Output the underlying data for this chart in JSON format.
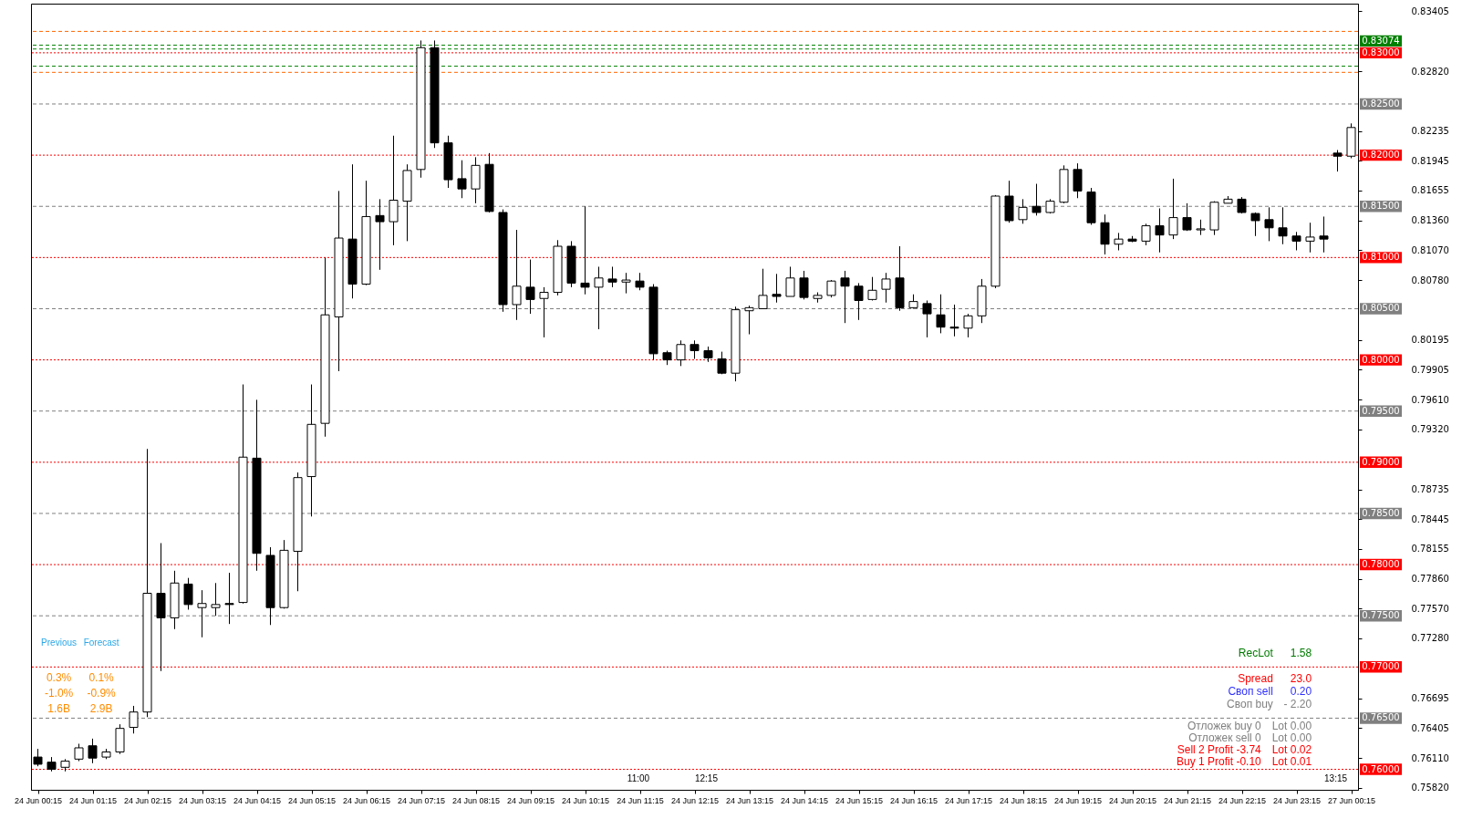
{
  "chart_data": {
    "type": "candlestick",
    "color": "#000000",
    "categories": [
      "24 Jun 00:15",
      null,
      null,
      null,
      "24 Jun 01:15",
      null,
      null,
      null,
      "24 Jun 02:15",
      null,
      null,
      null,
      "24 Jun 03:15",
      null,
      null,
      null,
      "24 Jun 04:15",
      null,
      null,
      null,
      "24 Jun 05:15",
      null,
      null,
      null,
      "24 Jun 06:15",
      null,
      null,
      null,
      "24 Jun 07:15",
      null,
      null,
      null,
      "24 Jun 08:15",
      null,
      null,
      null,
      "24 Jun 09:15",
      null,
      null,
      null,
      "24 Jun 10:15",
      null,
      null,
      null,
      "24 Jun 11:15",
      null,
      null,
      null,
      "24 Jun 12:15",
      null,
      null,
      null,
      "24 Jun 13:15",
      null,
      null,
      null,
      "24 Jun 14:15",
      null,
      null,
      null,
      "24 Jun 15:15",
      null,
      null,
      null,
      "24 Jun 16:15",
      null,
      null,
      null,
      "24 Jun 17:15",
      null,
      null,
      null,
      "24 Jun 18:15",
      null,
      null,
      null,
      "24 Jun 19:15",
      null,
      null,
      null,
      "24 Jun 20:15",
      null,
      null,
      null,
      "24 Jun 21:15",
      null,
      null,
      null,
      "24 Jun 22:15",
      null,
      null,
      null,
      "24 Jun 23:15",
      null,
      null,
      null,
      "27 Jun 00:15"
    ],
    "ohlc": [
      [
        0.7612,
        0.762,
        0.7603,
        0.7605
      ],
      [
        0.7607,
        0.7612,
        0.7598,
        0.76
      ],
      [
        0.7602,
        0.761,
        0.7598,
        0.7608
      ],
      [
        0.761,
        0.7625,
        0.7608,
        0.7621
      ],
      [
        0.7623,
        0.763,
        0.7606,
        0.7611
      ],
      [
        0.7612,
        0.762,
        0.761,
        0.7617
      ],
      [
        0.7617,
        0.7644,
        0.7615,
        0.764
      ],
      [
        0.7641,
        0.7662,
        0.7635,
        0.7656
      ],
      [
        0.7656,
        0.7913,
        0.7651,
        0.7772
      ],
      [
        0.7772,
        0.7821,
        0.7696,
        0.7748
      ],
      [
        0.7748,
        0.7794,
        0.7737,
        0.7782
      ],
      [
        0.7781,
        0.7787,
        0.7756,
        0.7761
      ],
      [
        0.7758,
        0.7775,
        0.7729,
        0.7762
      ],
      [
        0.7758,
        0.7782,
        0.775,
        0.7761
      ],
      [
        0.7762,
        0.7792,
        0.7742,
        0.7761
      ],
      [
        0.7763,
        0.7976,
        0.7762,
        0.7905
      ],
      [
        0.7904,
        0.7961,
        0.7794,
        0.7811
      ],
      [
        0.7809,
        0.7817,
        0.7741,
        0.7758
      ],
      [
        0.7758,
        0.7824,
        0.7757,
        0.7814
      ],
      [
        0.7813,
        0.789,
        0.7774,
        0.7885
      ],
      [
        0.7886,
        0.7976,
        0.7847,
        0.7937
      ],
      [
        0.7938,
        0.81,
        0.7925,
        0.8044
      ],
      [
        0.8042,
        0.8165,
        0.7989,
        0.8119
      ],
      [
        0.8118,
        0.8191,
        0.806,
        0.8074
      ],
      [
        0.8074,
        0.8175,
        0.8073,
        0.814
      ],
      [
        0.8141,
        0.8157,
        0.8088,
        0.8135
      ],
      [
        0.8135,
        0.8219,
        0.8112,
        0.8156
      ],
      [
        0.8155,
        0.8191,
        0.8116,
        0.8185
      ],
      [
        0.8186,
        0.8312,
        0.8178,
        0.8305
      ],
      [
        0.8305,
        0.8312,
        0.8207,
        0.8212
      ],
      [
        0.8212,
        0.8219,
        0.8168,
        0.8176
      ],
      [
        0.8177,
        0.8195,
        0.8158,
        0.8167
      ],
      [
        0.8167,
        0.8198,
        0.8153,
        0.819
      ],
      [
        0.8191,
        0.8202,
        0.8144,
        0.8145
      ],
      [
        0.8144,
        0.8147,
        0.8047,
        0.8054
      ],
      [
        0.8054,
        0.8127,
        0.8039,
        0.8072
      ],
      [
        0.8071,
        0.8098,
        0.8045,
        0.8059
      ],
      [
        0.806,
        0.8071,
        0.8022,
        0.8066
      ],
      [
        0.8066,
        0.8117,
        0.8063,
        0.8111
      ],
      [
        0.8111,
        0.8116,
        0.8071,
        0.8075
      ],
      [
        0.8075,
        0.815,
        0.8064,
        0.8071
      ],
      [
        0.8071,
        0.8091,
        0.803,
        0.808
      ],
      [
        0.8079,
        0.8091,
        0.8071,
        0.8076
      ],
      [
        0.8076,
        0.8085,
        0.8065,
        0.8078
      ],
      [
        0.8077,
        0.8085,
        0.8068,
        0.8071
      ],
      [
        0.8071,
        0.8074,
        0.8,
        0.8006
      ],
      [
        0.8007,
        0.8009,
        0.7995,
        0.8
      ],
      [
        0.8,
        0.8019,
        0.7994,
        0.8015
      ],
      [
        0.8015,
        0.8019,
        0.8001,
        0.8009
      ],
      [
        0.8009,
        0.8013,
        0.7998,
        0.8002
      ],
      [
        0.8001,
        0.8008,
        0.7986,
        0.7987
      ],
      [
        0.7987,
        0.8052,
        0.7979,
        0.8049
      ],
      [
        0.8048,
        0.8053,
        0.8025,
        0.8051
      ],
      [
        0.805,
        0.8089,
        0.805,
        0.8063
      ],
      [
        0.8064,
        0.8084,
        0.8056,
        0.8062
      ],
      [
        0.8062,
        0.8091,
        0.8062,
        0.808
      ],
      [
        0.808,
        0.8087,
        0.8059,
        0.8061
      ],
      [
        0.806,
        0.8066,
        0.8056,
        0.8063
      ],
      [
        0.8063,
        0.8078,
        0.8061,
        0.8077
      ],
      [
        0.808,
        0.8087,
        0.8036,
        0.8072
      ],
      [
        0.8072,
        0.8075,
        0.8039,
        0.8058
      ],
      [
        0.8059,
        0.8081,
        0.8058,
        0.8068
      ],
      [
        0.8069,
        0.8085,
        0.8056,
        0.8079
      ],
      [
        0.808,
        0.8111,
        0.8048,
        0.8051
      ],
      [
        0.8051,
        0.8064,
        0.805,
        0.8057
      ],
      [
        0.8055,
        0.8058,
        0.8022,
        0.8045
      ],
      [
        0.8044,
        0.8064,
        0.8026,
        0.8032
      ],
      [
        0.8032,
        0.8054,
        0.8023,
        0.8031
      ],
      [
        0.8031,
        0.8045,
        0.8022,
        0.8043
      ],
      [
        0.8043,
        0.8079,
        0.8036,
        0.8072
      ],
      [
        0.8072,
        0.8161,
        0.807,
        0.816
      ],
      [
        0.816,
        0.8175,
        0.8134,
        0.8136
      ],
      [
        0.8137,
        0.8157,
        0.8133,
        0.8149
      ],
      [
        0.815,
        0.8172,
        0.8141,
        0.8144
      ],
      [
        0.8144,
        0.8157,
        0.8143,
        0.8155
      ],
      [
        0.8154,
        0.819,
        0.8153,
        0.8186
      ],
      [
        0.8186,
        0.8192,
        0.8158,
        0.8165
      ],
      [
        0.8164,
        0.8168,
        0.8132,
        0.8134
      ],
      [
        0.8134,
        0.8142,
        0.8103,
        0.8113
      ],
      [
        0.8113,
        0.8124,
        0.8107,
        0.8118
      ],
      [
        0.8118,
        0.8121,
        0.8115,
        0.8116
      ],
      [
        0.8116,
        0.8133,
        0.8112,
        0.8131
      ],
      [
        0.8131,
        0.8148,
        0.8105,
        0.8122
      ],
      [
        0.8122,
        0.8177,
        0.8118,
        0.8139
      ],
      [
        0.8139,
        0.8153,
        0.8126,
        0.8127
      ],
      [
        0.8127,
        0.8137,
        0.8122,
        0.8128
      ],
      [
        0.8127,
        0.8155,
        0.8122,
        0.8154
      ],
      [
        0.8153,
        0.816,
        0.8153,
        0.8157
      ],
      [
        0.8157,
        0.8159,
        0.8143,
        0.8144
      ],
      [
        0.8143,
        0.8144,
        0.8121,
        0.8136
      ],
      [
        0.8137,
        0.8149,
        0.8116,
        0.8129
      ],
      [
        0.8129,
        0.8149,
        0.8113,
        0.8121
      ],
      [
        0.8121,
        0.8125,
        0.8107,
        0.8116
      ],
      [
        0.8116,
        0.8134,
        0.8105,
        0.812
      ],
      [
        0.8121,
        0.814,
        0.8105,
        0.8118
      ],
      [
        0.8202,
        0.8205,
        0.8184,
        0.8199
      ],
      [
        0.8199,
        0.8231,
        0.8197,
        0.8227
      ]
    ],
    "ylim": [
      0.758,
      0.8348
    ],
    "yticks": [
      0.83405,
      {
        "value": 0.8282,
        "label": "0.82820"
      },
      0.82235,
      0.81945,
      0.81655,
      {
        "value": 0.8136,
        "label": "0.81360"
      },
      {
        "value": 0.8107,
        "label": "0.81070"
      },
      {
        "value": 0.8078,
        "label": "0.80780"
      },
      0.80195,
      0.79905,
      {
        "value": 0.7961,
        "label": "0.79610"
      },
      {
        "value": 0.7932,
        "label": "0.79320"
      },
      0.78735,
      0.78445,
      0.78155,
      {
        "value": 0.7786,
        "label": "0.77860"
      },
      {
        "value": 0.7757,
        "label": "0.77570"
      },
      {
        "value": 0.7728,
        "label": "0.77280"
      },
      0.76695,
      0.76405,
      {
        "value": 0.7611,
        "label": "0.76110"
      },
      {
        "value": 0.7582,
        "label": "0.75820"
      }
    ],
    "ref_lines": [
      {
        "axis": "y",
        "value": 0.83209,
        "color": "#ff6600",
        "line_style": "dashed"
      },
      {
        "axis": "y",
        "value": 0.83074,
        "label": "0.83074",
        "color": "#008000",
        "line_style": "dashed"
      },
      {
        "axis": "y",
        "value": 0.83037,
        "color": "#008000",
        "line_style": "dashed"
      },
      {
        "axis": "y",
        "value": 0.83,
        "label": "0.83000",
        "color": "#ff0000",
        "line_style": "dotted"
      },
      {
        "axis": "y",
        "value": 0.82869,
        "color": "#008000",
        "line_style": "dashed"
      },
      {
        "axis": "y",
        "value": 0.82809,
        "color": "#ff6600",
        "line_style": "dashed"
      },
      {
        "axis": "y",
        "value": 0.825,
        "label": "0.82500",
        "color": "#808080",
        "line_style": "dashed"
      },
      {
        "axis": "y",
        "value": 0.82,
        "label": "0.82000",
        "color": "#ff0000",
        "line_style": "dotted"
      },
      {
        "axis": "y",
        "value": 0.815,
        "label": "0.81500",
        "color": "#808080",
        "line_style": "dashed"
      },
      {
        "axis": "y",
        "value": 0.81,
        "label": "0.81000",
        "color": "#ff0000",
        "line_style": "dotted"
      },
      {
        "axis": "y",
        "value": 0.805,
        "label": "0.80500",
        "color": "#808080",
        "line_style": "dashed"
      },
      {
        "axis": "y",
        "value": 0.8,
        "label": "0.80000",
        "color": "#ff0000",
        "line_style": "dotted"
      },
      {
        "axis": "y",
        "value": 0.795,
        "label": "0.79500",
        "color": "#808080",
        "line_style": "dashed"
      },
      {
        "axis": "y",
        "value": 0.79,
        "label": "0.79000",
        "color": "#ff0000",
        "line_style": "dotted"
      },
      {
        "axis": "y",
        "value": 0.785,
        "label": "0.78500",
        "color": "#808080",
        "line_style": "dashed"
      },
      {
        "axis": "y",
        "value": 0.78,
        "label": "0.78000",
        "color": "#ff0000",
        "line_style": "dotted"
      },
      {
        "axis": "y",
        "value": 0.775,
        "label": "0.77500",
        "color": "#808080",
        "line_style": "dashed"
      },
      {
        "axis": "y",
        "value": 0.77,
        "label": "0.77000",
        "color": "#ff0000",
        "line_style": "dotted"
      },
      {
        "axis": "y",
        "value": 0.765,
        "label": "0.76500",
        "color": "#808080",
        "line_style": "dashed"
      },
      {
        "axis": "y",
        "value": 0.76,
        "label": "0.76000",
        "color": "#ff0000",
        "line_style": "dotted"
      }
    ],
    "annotations": [
      "Previous",
      "Forecast",
      "0.3%",
      "0.1%",
      "-1.0%",
      "-0.9%",
      "1.6B",
      "2.9B",
      "RecLot",
      "1.58",
      "Spread",
      "23.0",
      "Своп sell",
      "0.20",
      "Своп buy",
      "- 2.20",
      "Отложек buy 0",
      "Lot 0.00",
      "Отложек sell 0",
      "Lot 0.00",
      "Sell 2  Profit -3.74",
      "Lot 0.02",
      "Buy 1  Profit -0.10",
      "Lot 0.01",
      "11:00",
      "12:15",
      "13:15"
    ]
  }
}
